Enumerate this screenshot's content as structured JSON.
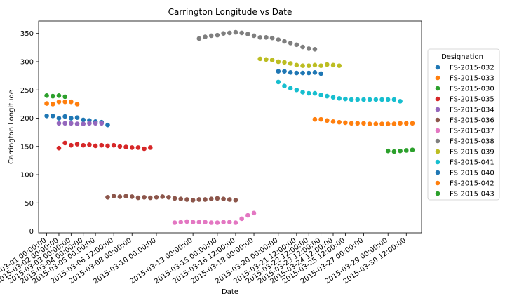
{
  "chart_data": {
    "type": "scatter",
    "title": "Carrington Longitude vs Date",
    "xlabel": "Date",
    "ylabel": "Carrington Longitude",
    "ylim": [
      -3,
      372
    ],
    "xlim": [
      "2015-02-28 08:00:00",
      "2015-03-31 18:00:00"
    ],
    "yticks": [
      0,
      50,
      100,
      150,
      200,
      250,
      300,
      350
    ],
    "xticks": [
      "2015-03-01 00:00:00",
      "2015-03-02 00:00:00",
      "2015-03-03 00:00:00",
      "2015-03-04 00:00:00",
      "2015-03-05 00:00:00",
      "2015-03-06 12:00:00",
      "2015-03-08 00:00:00",
      "2015-03-10 00:00:00",
      "2015-03-13 00:00:00",
      "2015-03-15 00:00:00",
      "2015-03-16 12:00:00",
      "2015-03-18 00:00:00",
      "2015-03-20 00:00:00",
      "2015-03-21 12:00:00",
      "2015-03-22 12:00:00",
      "2015-03-23 12:00:00",
      "2015-03-24 12:00:00",
      "2015-03-25 12:00:00",
      "2015-03-27 00:00:00",
      "2015-03-29 00:00:00",
      "2015-03-30 12:00:00"
    ],
    "grid": false,
    "legend": {
      "title": "Designation",
      "placement": "right"
    },
    "series": [
      {
        "name": "FS-2015-032",
        "color": "#1f77b4",
        "x": [
          "2015-03-01 00:00:00",
          "2015-03-01 12:00:00",
          "2015-03-02 00:00:00",
          "2015-03-02 12:00:00",
          "2015-03-03 00:00:00",
          "2015-03-03 12:00:00",
          "2015-03-04 00:00:00",
          "2015-03-04 12:00:00",
          "2015-03-05 00:00:00",
          "2015-03-05 12:00:00",
          "2015-03-06 00:00:00"
        ],
        "y": [
          204,
          204,
          200,
          203,
          200,
          201,
          197,
          196,
          194,
          193,
          188
        ]
      },
      {
        "name": "FS-2015-033",
        "color": "#ff7f0e",
        "x": [
          "2015-03-01 00:00:00",
          "2015-03-01 12:00:00",
          "2015-03-02 00:00:00",
          "2015-03-02 12:00:00",
          "2015-03-03 00:00:00",
          "2015-03-03 12:00:00"
        ],
        "y": [
          226,
          225,
          229,
          229,
          229,
          225
        ]
      },
      {
        "name": "FS-2015-030",
        "color": "#2ca02c",
        "x": [
          "2015-03-01 00:00:00",
          "2015-03-01 12:00:00",
          "2015-03-02 00:00:00",
          "2015-03-02 12:00:00"
        ],
        "y": [
          240,
          239,
          240,
          238
        ]
      },
      {
        "name": "FS-2015-035",
        "color": "#d62728",
        "x": [
          "2015-03-02 00:00:00",
          "2015-03-02 12:00:00",
          "2015-03-03 00:00:00",
          "2015-03-03 12:00:00",
          "2015-03-04 00:00:00",
          "2015-03-04 12:00:00",
          "2015-03-05 00:00:00",
          "2015-03-05 12:00:00",
          "2015-03-06 00:00:00",
          "2015-03-06 12:00:00",
          "2015-03-07 00:00:00",
          "2015-03-07 12:00:00",
          "2015-03-08 00:00:00",
          "2015-03-08 12:00:00",
          "2015-03-09 00:00:00",
          "2015-03-09 12:00:00"
        ],
        "y": [
          147,
          156,
          152,
          154,
          152,
          153,
          151,
          152,
          151,
          152,
          150,
          149,
          148,
          148,
          146,
          148
        ]
      },
      {
        "name": "FS-2015-034",
        "color": "#9467bd",
        "x": [
          "2015-03-02 00:00:00",
          "2015-03-02 12:00:00",
          "2015-03-03 00:00:00",
          "2015-03-03 12:00:00",
          "2015-03-04 00:00:00",
          "2015-03-04 12:00:00",
          "2015-03-05 00:00:00",
          "2015-03-05 12:00:00"
        ],
        "y": [
          191,
          191,
          191,
          190,
          190,
          191,
          191,
          191
        ]
      },
      {
        "name": "FS-2015-036",
        "color": "#8c564b",
        "x": [
          "2015-03-06 00:00:00",
          "2015-03-06 12:00:00",
          "2015-03-07 00:00:00",
          "2015-03-07 12:00:00",
          "2015-03-08 00:00:00",
          "2015-03-08 12:00:00",
          "2015-03-09 00:00:00",
          "2015-03-09 12:00:00",
          "2015-03-10 00:00:00",
          "2015-03-10 12:00:00",
          "2015-03-11 00:00:00",
          "2015-03-11 12:00:00",
          "2015-03-12 00:00:00",
          "2015-03-12 12:00:00",
          "2015-03-13 00:00:00",
          "2015-03-13 12:00:00",
          "2015-03-14 00:00:00",
          "2015-03-14 12:00:00",
          "2015-03-15 00:00:00",
          "2015-03-15 12:00:00",
          "2015-03-16 00:00:00",
          "2015-03-16 12:00:00"
        ],
        "y": [
          60,
          62,
          61,
          62,
          61,
          59,
          60,
          59,
          60,
          61,
          60,
          58,
          57,
          56,
          55,
          56,
          56,
          57,
          58,
          57,
          56,
          55
        ]
      },
      {
        "name": "FS-2015-037",
        "color": "#e377c2",
        "x": [
          "2015-03-11 12:00:00",
          "2015-03-12 00:00:00",
          "2015-03-12 12:00:00",
          "2015-03-13 00:00:00",
          "2015-03-13 12:00:00",
          "2015-03-14 00:00:00",
          "2015-03-14 12:00:00",
          "2015-03-15 00:00:00",
          "2015-03-15 12:00:00",
          "2015-03-16 00:00:00",
          "2015-03-16 12:00:00",
          "2015-03-17 00:00:00",
          "2015-03-17 12:00:00",
          "2015-03-18 00:00:00"
        ],
        "y": [
          15,
          16,
          17,
          16,
          16,
          16,
          15,
          15,
          16,
          16,
          15,
          22,
          28,
          32
        ]
      },
      {
        "name": "FS-2015-038",
        "color": "#7f7f7f",
        "x": [
          "2015-03-13 12:00:00",
          "2015-03-14 00:00:00",
          "2015-03-14 12:00:00",
          "2015-03-15 00:00:00",
          "2015-03-15 12:00:00",
          "2015-03-16 00:00:00",
          "2015-03-16 12:00:00",
          "2015-03-17 00:00:00",
          "2015-03-17 12:00:00",
          "2015-03-18 00:00:00",
          "2015-03-18 12:00:00",
          "2015-03-19 00:00:00",
          "2015-03-19 12:00:00",
          "2015-03-20 00:00:00",
          "2015-03-20 12:00:00",
          "2015-03-21 00:00:00",
          "2015-03-21 12:00:00",
          "2015-03-22 00:00:00",
          "2015-03-22 12:00:00",
          "2015-03-23 00:00:00"
        ],
        "y": [
          341,
          344,
          346,
          347,
          350,
          351,
          352,
          351,
          349,
          346,
          343,
          343,
          342,
          339,
          336,
          333,
          330,
          326,
          323,
          322
        ]
      },
      {
        "name": "FS-2015-039",
        "color": "#bcbd22",
        "x": [
          "2015-03-18 12:00:00",
          "2015-03-19 00:00:00",
          "2015-03-19 12:00:00",
          "2015-03-20 00:00:00",
          "2015-03-20 12:00:00",
          "2015-03-21 00:00:00",
          "2015-03-21 12:00:00",
          "2015-03-22 00:00:00",
          "2015-03-22 12:00:00",
          "2015-03-23 00:00:00",
          "2015-03-23 12:00:00",
          "2015-03-24 00:00:00",
          "2015-03-24 12:00:00",
          "2015-03-25 00:00:00"
        ],
        "y": [
          305,
          304,
          303,
          300,
          299,
          297,
          294,
          293,
          293,
          294,
          293,
          295,
          294,
          293
        ]
      },
      {
        "name": "FS-2015-041",
        "color": "#17becf",
        "x": [
          "2015-03-20 00:00:00",
          "2015-03-20 12:00:00",
          "2015-03-21 00:00:00",
          "2015-03-21 12:00:00",
          "2015-03-22 00:00:00",
          "2015-03-22 12:00:00",
          "2015-03-23 00:00:00",
          "2015-03-23 12:00:00",
          "2015-03-24 00:00:00",
          "2015-03-24 12:00:00",
          "2015-03-25 00:00:00",
          "2015-03-25 12:00:00",
          "2015-03-26 00:00:00",
          "2015-03-26 12:00:00",
          "2015-03-27 00:00:00",
          "2015-03-27 12:00:00",
          "2015-03-28 00:00:00",
          "2015-03-28 12:00:00",
          "2015-03-29 00:00:00",
          "2015-03-29 12:00:00",
          "2015-03-30 00:00:00"
        ],
        "y": [
          264,
          257,
          253,
          250,
          246,
          244,
          244,
          241,
          239,
          237,
          235,
          234,
          233,
          233,
          233,
          233,
          233,
          233,
          233,
          233,
          230
        ]
      },
      {
        "name": "FS-2015-040",
        "color": "#1f77b4",
        "x": [
          "2015-03-20 00:00:00",
          "2015-03-20 12:00:00",
          "2015-03-21 00:00:00",
          "2015-03-21 12:00:00",
          "2015-03-22 00:00:00",
          "2015-03-22 12:00:00",
          "2015-03-23 00:00:00",
          "2015-03-23 12:00:00"
        ],
        "y": [
          283,
          283,
          281,
          280,
          280,
          280,
          281,
          279
        ]
      },
      {
        "name": "FS-2015-042",
        "color": "#ff7f0e",
        "x": [
          "2015-03-23 00:00:00",
          "2015-03-23 12:00:00",
          "2015-03-24 00:00:00",
          "2015-03-24 12:00:00",
          "2015-03-25 00:00:00",
          "2015-03-25 12:00:00",
          "2015-03-26 00:00:00",
          "2015-03-26 12:00:00",
          "2015-03-27 00:00:00",
          "2015-03-27 12:00:00",
          "2015-03-28 00:00:00",
          "2015-03-28 12:00:00",
          "2015-03-29 00:00:00",
          "2015-03-29 12:00:00",
          "2015-03-30 00:00:00",
          "2015-03-30 12:00:00",
          "2015-03-31 00:00:00"
        ],
        "y": [
          198,
          198,
          196,
          194,
          193,
          192,
          191,
          191,
          191,
          190,
          190,
          190,
          190,
          190,
          191,
          191,
          191
        ]
      },
      {
        "name": "FS-2015-043",
        "color": "#2ca02c",
        "x": [
          "2015-03-29 00:00:00",
          "2015-03-29 12:00:00",
          "2015-03-30 00:00:00",
          "2015-03-30 12:00:00",
          "2015-03-31 00:00:00"
        ],
        "y": [
          142,
          141,
          142,
          143,
          144
        ]
      }
    ]
  }
}
